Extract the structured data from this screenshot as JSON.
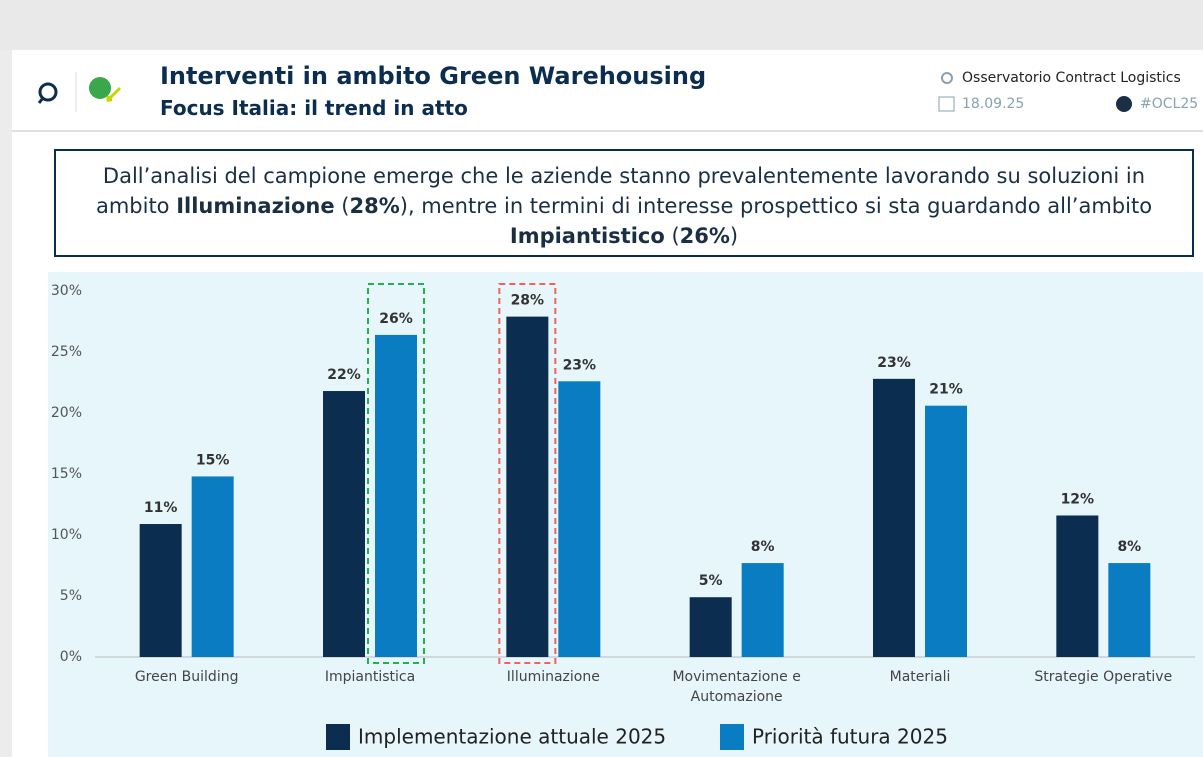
{
  "header": {
    "title": "Interventi in ambito Green Warehousing",
    "subtitle": "Focus Italia: il trend in atto",
    "source": "Osservatorio Contract Logistics",
    "date": "18.09.25",
    "hashtag": "#OCL25"
  },
  "callout": [
    {
      "text": "Dall’analisi del campione emerge che le aziende stanno prevalentemente lavorando su soluzioni in ambito ",
      "bold": false
    },
    {
      "text": "Illuminazione",
      "bold": true
    },
    {
      "text": " (",
      "bold": false
    },
    {
      "text": "28%",
      "bold": true
    },
    {
      "text": "), mentre in termini di interesse prospettico si sta guardando all’ambito ",
      "bold": false
    },
    {
      "text": "Impiantistico",
      "bold": true
    },
    {
      "text": " (",
      "bold": false
    },
    {
      "text": "26%",
      "bold": true
    },
    {
      "text": ")",
      "bold": false
    }
  ],
  "chart_data": {
    "type": "bar",
    "categories": [
      "Green Building",
      "Impiantistica",
      "Illuminazione",
      "Movimentazione e Automazione",
      "Materiali",
      "Strategie Operative"
    ],
    "series": [
      {
        "name": "Implementazione attuale 2025",
        "color": "#0b2d50",
        "values": [
          10.9,
          21.8,
          27.9,
          4.9,
          22.8,
          11.6
        ],
        "value_labels": [
          "11%",
          "22%",
          "28%",
          "5%",
          "23%",
          "12%"
        ]
      },
      {
        "name": "Priorità futura 2025",
        "color": "#0a7dc2",
        "values": [
          14.8,
          26.4,
          22.6,
          7.7,
          20.6,
          7.7
        ],
        "value_labels": [
          "15%",
          "26%",
          "23%",
          "8%",
          "21%",
          "8%"
        ]
      }
    ],
    "ylim": [
      0,
      30
    ],
    "yticks": [
      {
        "value": 0,
        "label": "0%"
      },
      {
        "value": 5,
        "label": "5%"
      },
      {
        "value": 10,
        "label": "10%"
      },
      {
        "value": 15,
        "label": "15%"
      },
      {
        "value": 20,
        "label": "20%"
      },
      {
        "value": 25,
        "label": "25%"
      },
      {
        "value": 30,
        "label": "30%"
      }
    ],
    "grid": false,
    "legend": "bottom"
  }
}
